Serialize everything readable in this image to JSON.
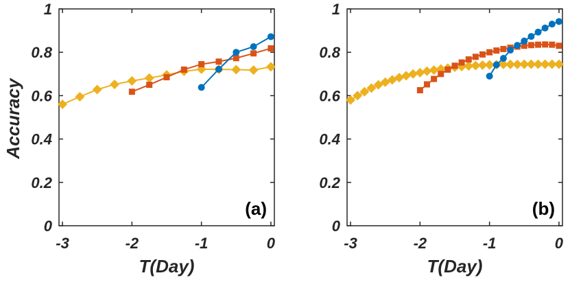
{
  "chart_data": [
    {
      "type": "line",
      "panel_label": "(a)",
      "xlabel": "T(Day)",
      "ylabel": "Accuracy",
      "xlim": [
        -3.05,
        0.05
      ],
      "ylim": [
        0,
        1
      ],
      "xticks": [
        -3,
        -2,
        -1,
        0
      ],
      "yticks": [
        0,
        0.2,
        0.4,
        0.6,
        0.8,
        1
      ],
      "xtick_labels": [
        "-3",
        "-2",
        "-1",
        "0"
      ],
      "ytick_labels": [
        "0",
        "0.2",
        "0.4",
        "0.6",
        "0.8",
        "1"
      ],
      "series": [
        {
          "name": "diamond",
          "color": "#EDB120",
          "marker": "diamond",
          "x": [
            -3,
            -2.75,
            -2.5,
            -2.25,
            -2,
            -1.75,
            -1.5,
            -1.25,
            -1,
            -0.75,
            -0.5,
            -0.25,
            0
          ],
          "y": [
            0.56,
            0.595,
            0.628,
            0.652,
            0.668,
            0.681,
            0.696,
            0.712,
            0.722,
            0.721,
            0.72,
            0.718,
            0.733
          ]
        },
        {
          "name": "square",
          "color": "#D95319",
          "marker": "square",
          "x": [
            -2,
            -1.75,
            -1.5,
            -1.25,
            -1,
            -0.75,
            -0.5,
            -0.25,
            0
          ],
          "y": [
            0.618,
            0.65,
            0.685,
            0.72,
            0.745,
            0.757,
            0.773,
            0.795,
            0.818
          ]
        },
        {
          "name": "circle",
          "color": "#0072BD",
          "marker": "circle",
          "x": [
            -1,
            -0.75,
            -0.5,
            -0.25,
            0
          ],
          "y": [
            0.638,
            0.722,
            0.8,
            0.826,
            0.872
          ]
        }
      ]
    },
    {
      "type": "line",
      "panel_label": "(b)",
      "xlabel": "T(Day)",
      "ylabel": "",
      "xlim": [
        -3.05,
        0.05
      ],
      "ylim": [
        0,
        1
      ],
      "xticks": [
        -3,
        -2,
        -1,
        0
      ],
      "yticks": [
        0,
        0.2,
        0.4,
        0.6,
        0.8,
        1
      ],
      "xtick_labels": [
        "-3",
        "-2",
        "-1",
        "0"
      ],
      "ytick_labels": [
        "0",
        "0.2",
        "0.4",
        "0.6",
        "0.8",
        "1"
      ],
      "series": [
        {
          "name": "diamond",
          "color": "#EDB120",
          "marker": "diamond",
          "x": [
            -3,
            -2.9,
            -2.8,
            -2.7,
            -2.6,
            -2.5,
            -2.4,
            -2.3,
            -2.2,
            -2.1,
            -2,
            -1.9,
            -1.8,
            -1.7,
            -1.6,
            -1.5,
            -1.4,
            -1.3,
            -1.2,
            -1.1,
            -1,
            -0.9,
            -0.8,
            -0.7,
            -0.6,
            -0.5,
            -0.4,
            -0.3,
            -0.2,
            -0.1,
            0
          ],
          "y": [
            0.58,
            0.6,
            0.618,
            0.635,
            0.65,
            0.662,
            0.673,
            0.683,
            0.692,
            0.7,
            0.706,
            0.713,
            0.718,
            0.723,
            0.727,
            0.731,
            0.734,
            0.737,
            0.739,
            0.741,
            0.742,
            0.743,
            0.744,
            0.744,
            0.744,
            0.745,
            0.745,
            0.745,
            0.745,
            0.745,
            0.745
          ]
        },
        {
          "name": "square",
          "color": "#D95319",
          "marker": "square",
          "x": [
            -2,
            -1.9,
            -1.8,
            -1.7,
            -1.6,
            -1.5,
            -1.4,
            -1.3,
            -1.2,
            -1.1,
            -1,
            -0.9,
            -0.8,
            -0.7,
            -0.6,
            -0.5,
            -0.4,
            -0.3,
            -0.2,
            -0.1,
            0
          ],
          "y": [
            0.625,
            0.652,
            0.677,
            0.7,
            0.72,
            0.738,
            0.753,
            0.767,
            0.779,
            0.79,
            0.8,
            0.808,
            0.815,
            0.821,
            0.826,
            0.83,
            0.833,
            0.835,
            0.836,
            0.835,
            0.83
          ]
        },
        {
          "name": "circle",
          "color": "#0072BD",
          "marker": "circle",
          "x": [
            -1,
            -0.9,
            -0.8,
            -0.7,
            -0.6,
            -0.5,
            -0.4,
            -0.3,
            -0.2,
            -0.1,
            0
          ],
          "y": [
            0.69,
            0.742,
            0.772,
            0.81,
            0.832,
            0.852,
            0.873,
            0.893,
            0.912,
            0.93,
            0.942
          ]
        }
      ]
    }
  ]
}
